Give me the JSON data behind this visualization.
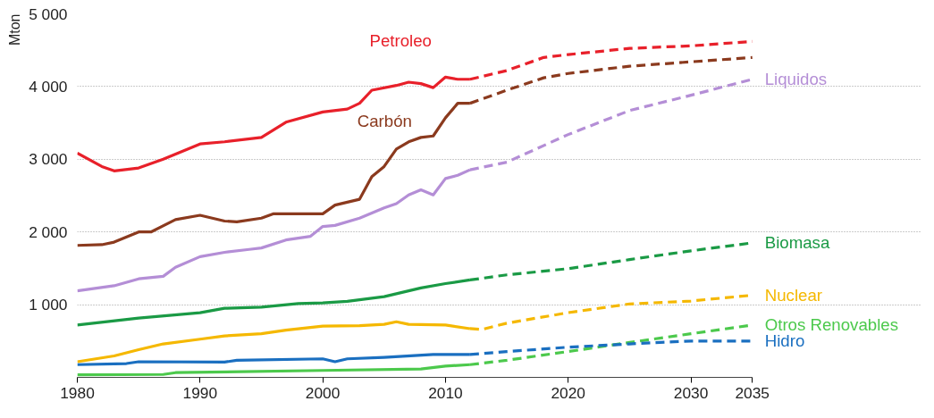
{
  "chart_data": {
    "type": "line",
    "ylabel": "Mton",
    "xlim": [
      1980,
      2035
    ],
    "xticks": [
      1980,
      1990,
      2000,
      2010,
      2020,
      2030,
      2035
    ],
    "ylim": [
      0,
      5000
    ],
    "yticks": [
      {
        "value": 0,
        "label": null
      },
      {
        "value": 1000,
        "label": "1 000"
      },
      {
        "value": 2000,
        "label": "2 000"
      },
      {
        "value": 3000,
        "label": "3 000"
      },
      {
        "value": 4000,
        "label": "4 000"
      },
      {
        "value": 5000,
        "label": "5 000"
      }
    ],
    "grid": "y",
    "line_style": "solid",
    "series": [
      {
        "name": "Petroleo",
        "color": "#e8202a",
        "x": [
          1980,
          1982,
          1983,
          1985,
          1987,
          1990,
          1992,
          1995,
          1997,
          2000,
          2002,
          2003,
          2004,
          2006,
          2007,
          2008,
          2009,
          2010,
          2011,
          2012
        ],
        "values": [
          3085,
          2900,
          2840,
          2880,
          3000,
          3210,
          3240,
          3300,
          3510,
          3650,
          3690,
          3770,
          3950,
          4015,
          4060,
          4040,
          3985,
          4130,
          4100,
          4100
        ]
      },
      {
        "color": "#e8202a",
        "line_style": "dashed",
        "x": [
          2012,
          2015,
          2018,
          2020,
          2025,
          2030,
          2035
        ],
        "values": [
          4100,
          4220,
          4400,
          4440,
          4525,
          4560,
          4620
        ]
      },
      {
        "name": "Carbón",
        "color": "#8b3a1e",
        "x": [
          1980,
          1982,
          1983,
          1985,
          1986,
          1988,
          1990,
          1992,
          1993,
          1995,
          1996,
          2000,
          2001,
          2003,
          2004,
          2005,
          2006,
          2007,
          2008,
          2009,
          2010,
          2011,
          2012
        ],
        "values": [
          1815,
          1825,
          1860,
          2000,
          2000,
          2170,
          2230,
          2150,
          2140,
          2190,
          2250,
          2250,
          2370,
          2450,
          2760,
          2900,
          3140,
          3240,
          3300,
          3320,
          3570,
          3770,
          3770
        ]
      },
      {
        "color": "#8b3a1e",
        "line_style": "dashed",
        "x": [
          2012,
          2015,
          2018,
          2020,
          2025,
          2030,
          2035
        ],
        "values": [
          3770,
          3950,
          4120,
          4180,
          4280,
          4340,
          4400
        ]
      },
      {
        "color": "#b48ed6",
        "x": [
          1980,
          1983,
          1985,
          1987,
          1988,
          1990,
          1992,
          1994,
          1995,
          1997,
          1999,
          2000,
          2001,
          2003,
          2005,
          2006,
          2007,
          2008,
          2009,
          2010,
          2011,
          2012
        ],
        "values": [
          1190,
          1260,
          1355,
          1390,
          1515,
          1660,
          1720,
          1760,
          1780,
          1890,
          1940,
          2075,
          2090,
          2190,
          2330,
          2390,
          2510,
          2580,
          2510,
          2735,
          2780,
          2855
        ]
      },
      {
        "name": "Liquidos",
        "color": "#b48ed6",
        "line_style": "dashed",
        "x": [
          2012,
          2015,
          2020,
          2025,
          2030,
          2035
        ],
        "values": [
          2855,
          2960,
          3340,
          3670,
          3880,
          4100
        ]
      },
      {
        "color": "#1a9a45",
        "x": [
          1980,
          1985,
          1990,
          1992,
          1995,
          1998,
          2000,
          2002,
          2005,
          2006,
          2008,
          2010,
          2012
        ],
        "values": [
          720,
          815,
          890,
          950,
          965,
          1015,
          1025,
          1045,
          1110,
          1150,
          1230,
          1290,
          1340
        ]
      },
      {
        "name": "Biomasa",
        "color": "#1a9a45",
        "line_style": "dashed",
        "x": [
          2012,
          2015,
          2020,
          2025,
          2030,
          2035
        ],
        "values": [
          1340,
          1410,
          1495,
          1620,
          1740,
          1850
        ]
      },
      {
        "color": "#f5b800",
        "x": [
          1980,
          1983,
          1985,
          1987,
          1990,
          1992,
          1995,
          1997,
          2000,
          2003,
          2005,
          2006,
          2007,
          2010,
          2012
        ],
        "values": [
          215,
          295,
          380,
          460,
          525,
          570,
          600,
          650,
          705,
          710,
          730,
          765,
          730,
          720,
          670
        ]
      },
      {
        "name": "Nuclear",
        "color": "#f5b800",
        "line_style": "dashed",
        "x": [
          2012,
          2013,
          2015,
          2020,
          2025,
          2030,
          2035
        ],
        "values": [
          670,
          660,
          745,
          890,
          1010,
          1050,
          1130
        ]
      },
      {
        "color": "#4cc94c",
        "x": [
          1980,
          1987,
          1988,
          2000,
          2008,
          2010,
          2012
        ],
        "values": [
          35,
          40,
          65,
          95,
          115,
          155,
          175
        ]
      },
      {
        "name": "Otros Renovables",
        "color": "#4cc94c",
        "line_style": "dashed",
        "x": [
          2012,
          2015,
          2020,
          2025,
          2030,
          2035
        ],
        "values": [
          175,
          235,
          355,
          480,
          600,
          720
        ]
      },
      {
        "color": "#1a6fc0",
        "x": [
          1980,
          1984,
          1985,
          1992,
          1993,
          2000,
          2001,
          2002,
          2005,
          2009,
          2012
        ],
        "values": [
          175,
          190,
          215,
          210,
          235,
          255,
          215,
          255,
          275,
          315,
          315
        ]
      },
      {
        "name": "Hidro",
        "color": "#1a6fc0",
        "line_style": "dashed",
        "x": [
          2012,
          2015,
          2020,
          2025,
          2030,
          2035
        ],
        "values": [
          315,
          355,
          415,
          460,
          500,
          500
        ]
      }
    ]
  }
}
